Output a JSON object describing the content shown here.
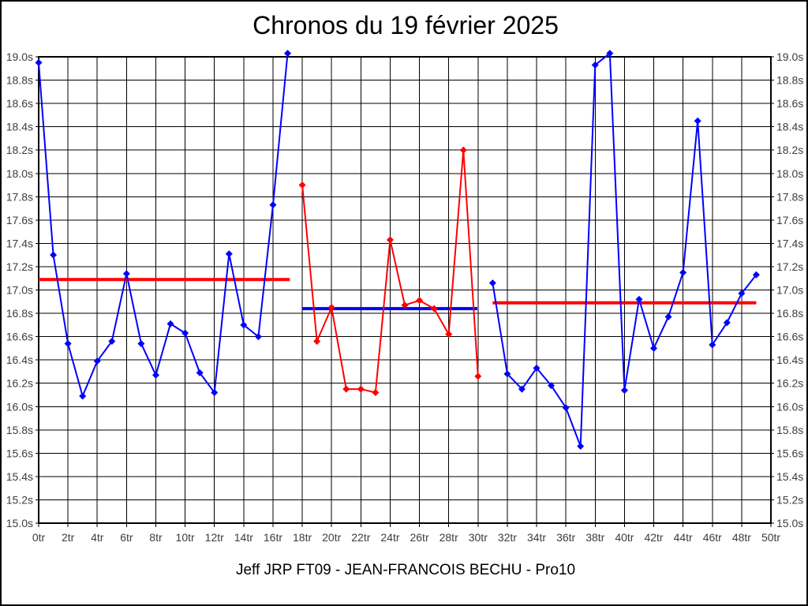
{
  "title": "Chronos du 19 février 2025",
  "footer": "Jeff JRP FT09 - JEAN-FRANCOIS BECHU - Pro10",
  "colors": {
    "blue_series": "#0000ff",
    "red_series": "#ff0000",
    "grid": "#000000",
    "tick_label": "#3d3d3d",
    "background": "#ffffff"
  },
  "chart_data": {
    "type": "line",
    "title": "Chronos du 19 février 2025",
    "xlabel": "",
    "ylabel": "",
    "xlim": [
      0,
      50
    ],
    "ylim": [
      15.0,
      19.0
    ],
    "grid": true,
    "x_unit": "tr",
    "y_unit": "s",
    "x_tick_labels": [
      "0tr",
      "2tr",
      "4tr",
      "6tr",
      "8tr",
      "10tr",
      "12tr",
      "14tr",
      "16tr",
      "18tr",
      "20tr",
      "22tr",
      "24tr",
      "26tr",
      "28tr",
      "30tr",
      "32tr",
      "34tr",
      "36tr",
      "38tr",
      "40tr",
      "42tr",
      "44tr",
      "46tr",
      "48tr",
      "50tr"
    ],
    "y_tick_labels": [
      "15.0s",
      "15.2s",
      "15.4s",
      "15.6s",
      "15.8s",
      "16.0s",
      "16.2s",
      "16.4s",
      "16.6s",
      "16.8s",
      "17.0s",
      "17.2s",
      "17.4s",
      "17.6s",
      "17.8s",
      "18.0s",
      "18.2s",
      "18.4s",
      "18.6s",
      "18.8s",
      "19.0s"
    ],
    "series": [
      {
        "name": "stint-1-blue",
        "color": "#0000ff",
        "points": [
          [
            0,
            18.95
          ],
          [
            1,
            17.3
          ],
          [
            2,
            16.54
          ],
          [
            3,
            16.09
          ],
          [
            4,
            16.39
          ],
          [
            5,
            16.56
          ],
          [
            6,
            17.14
          ],
          [
            7,
            16.54
          ],
          [
            8,
            16.27
          ],
          [
            9,
            16.71
          ],
          [
            10,
            16.63
          ],
          [
            11,
            16.29
          ],
          [
            12,
            16.12
          ],
          [
            13,
            17.31
          ],
          [
            14,
            16.7
          ],
          [
            15,
            16.6
          ],
          [
            16,
            17.73
          ],
          [
            17,
            19.03
          ]
        ]
      },
      {
        "name": "stint-2-red",
        "color": "#ff0000",
        "points": [
          [
            18,
            17.9
          ],
          [
            19,
            16.56
          ],
          [
            20,
            16.85
          ],
          [
            21,
            16.15
          ],
          [
            22,
            16.15
          ],
          [
            23,
            16.12
          ],
          [
            24,
            17.43
          ],
          [
            25,
            16.87
          ],
          [
            26,
            16.91
          ],
          [
            27,
            16.84
          ],
          [
            28,
            16.62
          ],
          [
            29,
            18.2
          ],
          [
            30,
            16.26
          ]
        ]
      },
      {
        "name": "stint-3-blue",
        "color": "#0000ff",
        "points": [
          [
            31,
            17.06
          ],
          [
            32,
            16.28
          ],
          [
            33,
            16.15
          ],
          [
            34,
            16.33
          ],
          [
            35,
            16.18
          ],
          [
            36,
            15.99
          ],
          [
            37,
            15.66
          ],
          [
            38,
            18.93
          ],
          [
            39,
            19.03
          ],
          [
            40,
            16.14
          ],
          [
            41,
            16.92
          ],
          [
            42,
            16.5
          ],
          [
            43,
            16.77
          ],
          [
            44,
            17.15
          ],
          [
            45,
            18.45
          ],
          [
            46,
            16.53
          ],
          [
            47,
            16.72
          ],
          [
            48,
            16.97
          ],
          [
            49,
            17.13
          ]
        ]
      }
    ],
    "average_lines": [
      {
        "name": "avg-line-stint-1",
        "color": "#ff0000",
        "value": 17.09,
        "x_start": 0.0,
        "x_end": 17.15
      },
      {
        "name": "avg-line-stint-2",
        "color": "#0000ff",
        "value": 16.84,
        "x_start": 18.0,
        "x_end": 29.95
      },
      {
        "name": "avg-line-stint-3",
        "color": "#ff0000",
        "value": 16.89,
        "x_start": 31.0,
        "x_end": 49.0
      }
    ]
  }
}
